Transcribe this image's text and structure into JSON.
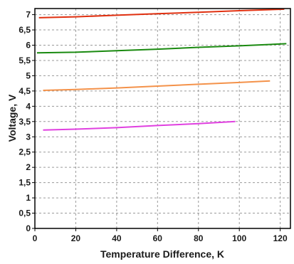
{
  "chart_data": {
    "type": "line",
    "xlabel": "Temperature Difference, K",
    "ylabel": "Voltage, V",
    "xlim": [
      0,
      125
    ],
    "ylim": [
      0,
      7.2
    ],
    "x_ticks": [
      0,
      20,
      40,
      60,
      80,
      100,
      120
    ],
    "x_tick_labels": [
      "0",
      "20",
      "40",
      "60",
      "80",
      "100",
      "120"
    ],
    "y_ticks": [
      0,
      0.5,
      1,
      1.5,
      2,
      2.5,
      3,
      3.5,
      4,
      4.5,
      5,
      5.5,
      6,
      6.5,
      7
    ],
    "y_tick_labels": [
      "0",
      "0,5",
      "1",
      "1,5",
      "2",
      "2,5",
      "3",
      "3,5",
      "4",
      "4,5",
      "5",
      "5,5",
      "6",
      "6,5",
      "7"
    ],
    "grid": true,
    "legend": "none",
    "series": [
      {
        "color": "#e03010",
        "x": [
          2,
          20,
          40,
          60,
          80,
          100,
          122
        ],
        "y": [
          6.9,
          6.93,
          6.98,
          7.03,
          7.08,
          7.13,
          7.18
        ]
      },
      {
        "color": "#1a8a10",
        "x": [
          1,
          20,
          40,
          60,
          80,
          100,
          123
        ],
        "y": [
          5.75,
          5.77,
          5.82,
          5.87,
          5.93,
          5.98,
          6.05
        ]
      },
      {
        "color": "#f4924a",
        "x": [
          4,
          20,
          40,
          60,
          80,
          100,
          115
        ],
        "y": [
          4.52,
          4.55,
          4.6,
          4.66,
          4.72,
          4.78,
          4.83
        ]
      },
      {
        "color": "#e040e0",
        "x": [
          4,
          20,
          40,
          60,
          80,
          98
        ],
        "y": [
          3.22,
          3.25,
          3.3,
          3.37,
          3.43,
          3.5
        ]
      }
    ]
  }
}
